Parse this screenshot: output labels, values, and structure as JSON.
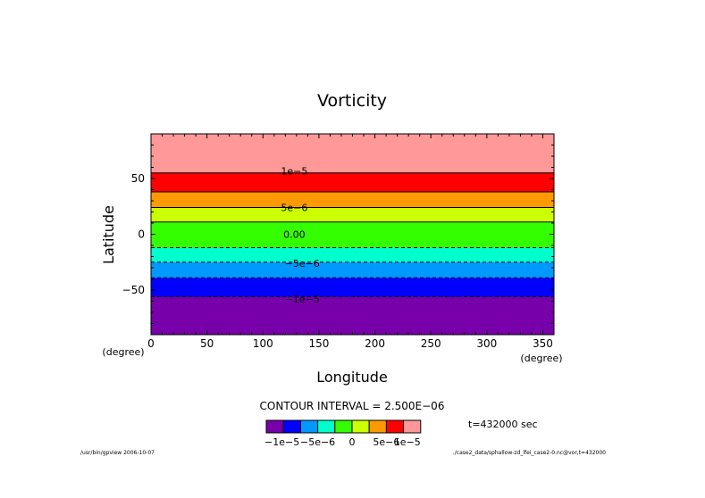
{
  "chart_data": {
    "type": "heatmap",
    "title": "Vorticity",
    "xlabel": "Longitude",
    "ylabel": "Latitude",
    "x_unit": "(degree)",
    "y_unit": "(degree)",
    "xlim": [
      0,
      360
    ],
    "ylim": [
      -90,
      90
    ],
    "xticks": [
      {
        "value": 0,
        "label": "0"
      },
      {
        "value": 50,
        "label": "50"
      },
      {
        "value": 100,
        "label": "100"
      },
      {
        "value": 150,
        "label": "150"
      },
      {
        "value": 200,
        "label": "200"
      },
      {
        "value": 250,
        "label": "250"
      },
      {
        "value": 300,
        "label": "300"
      },
      {
        "value": 350,
        "label": "350"
      }
    ],
    "yticks": [
      {
        "value": 50,
        "label": "50"
      },
      {
        "value": 0,
        "label": "0"
      },
      {
        "value": -50,
        "label": "−50"
      }
    ],
    "bands": [
      {
        "lat_min": 55,
        "lat_max": 90,
        "color": "#ff9999"
      },
      {
        "lat_min": 38,
        "lat_max": 55,
        "color": "#ff0000"
      },
      {
        "lat_min": 24,
        "lat_max": 38,
        "color": "#ff9900"
      },
      {
        "lat_min": 11,
        "lat_max": 24,
        "color": "#ccff00"
      },
      {
        "lat_min": -12,
        "lat_max": 11,
        "color": "#33ff00"
      },
      {
        "lat_min": -25,
        "lat_max": -12,
        "color": "#00ffcc"
      },
      {
        "lat_min": -39,
        "lat_max": -25,
        "color": "#0099ff"
      },
      {
        "lat_min": -56,
        "lat_max": -39,
        "color": "#0000ff"
      },
      {
        "lat_min": -90,
        "lat_max": -56,
        "color": "#7700aa"
      }
    ],
    "contours": [
      {
        "lat": 55,
        "dashed": false
      },
      {
        "lat": 38,
        "dashed": false
      },
      {
        "lat": 24,
        "dashed": false
      },
      {
        "lat": 11,
        "dashed": false
      },
      {
        "lat": -12,
        "dashed": true
      },
      {
        "lat": -25,
        "dashed": true
      },
      {
        "lat": -39,
        "dashed": true
      },
      {
        "lat": -56,
        "dashed": true
      }
    ],
    "contour_labels": [
      {
        "text": "1e−5",
        "lon": 128,
        "lat": 57
      },
      {
        "text": "5e−6",
        "lon": 128,
        "lat": 24
      },
      {
        "text": "0.00",
        "lon": 128,
        "lat": 0
      },
      {
        "text": "−5e−6",
        "lon": 135,
        "lat": -26
      },
      {
        "text": "−1e−5",
        "lon": 135,
        "lat": -58
      }
    ],
    "contour_interval_text": "CONTOUR INTERVAL = 2.500E−06",
    "colorbar": {
      "colors": [
        "#7700aa",
        "#0000ff",
        "#0099ff",
        "#00ffcc",
        "#33ff00",
        "#ccff00",
        "#ff9900",
        "#ff0000",
        "#ff9999"
      ],
      "labels": [
        "−1e−5",
        "−5e−6",
        "0",
        "5e−6",
        "1e−5"
      ]
    },
    "time_text": "t=432000 sec",
    "footer_left": "/usr/bin/gpview  2006-10-07",
    "footer_right": "./case2_data/sphallow-zd_lfei_case2-0.nc@vor,t=432000"
  }
}
